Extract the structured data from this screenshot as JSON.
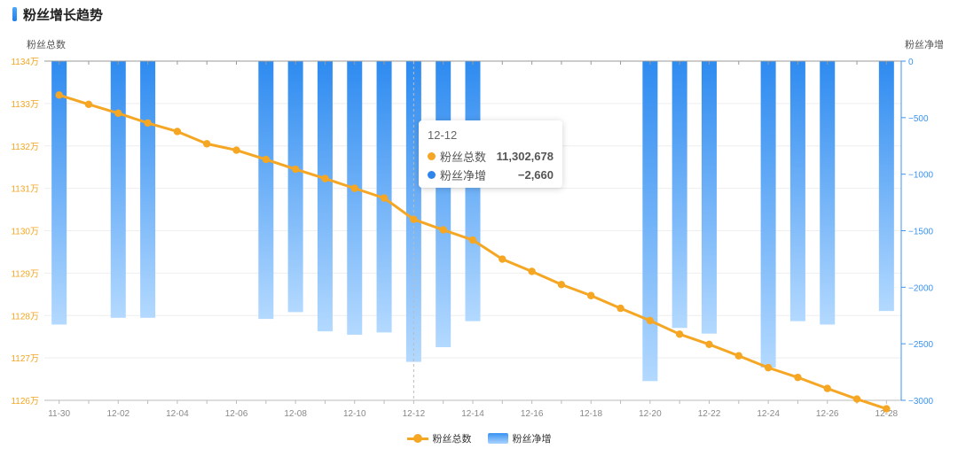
{
  "header": {
    "title": "粉丝增长趋势"
  },
  "chart_data": {
    "type": "bar+line",
    "categories": [
      "11-30",
      "12-01",
      "12-02",
      "12-03",
      "12-04",
      "12-05",
      "12-06",
      "12-07",
      "12-08",
      "12-09",
      "12-10",
      "12-11",
      "12-12",
      "12-13",
      "12-14",
      "12-15",
      "12-16",
      "12-17",
      "12-18",
      "12-19",
      "12-20",
      "12-21",
      "12-22",
      "12-23",
      "12-24",
      "12-25",
      "12-26",
      "12-27",
      "12-28"
    ],
    "x_tick_labels": [
      "11-30",
      "12-02",
      "12-04",
      "12-06",
      "12-08",
      "12-10",
      "12-12",
      "12-14",
      "12-16",
      "12-18",
      "12-20",
      "12-22",
      "12-24",
      "12-26",
      "12-28"
    ],
    "left_axis": {
      "name": "粉丝总数",
      "min": 1126,
      "max": 1134,
      "ticks": [
        "1126万",
        "1127万",
        "1128万",
        "1129万",
        "1130万",
        "1131万",
        "1132万",
        "1133万",
        "1134万"
      ],
      "color": "#f5a623"
    },
    "right_axis": {
      "name": "粉丝净增",
      "min": -3000,
      "max": 0,
      "ticks": [
        "0",
        "−500",
        "−1000",
        "−1500",
        "−2000",
        "−2500",
        "−3000"
      ],
      "color": "#3a93f2"
    },
    "series": [
      {
        "name": "粉丝总数",
        "type": "line",
        "axis": "left",
        "color": "#f5a623",
        "values": [
          11332000,
          11329800,
          11327700,
          11325400,
          11323400,
          11320500,
          11319000,
          11316800,
          11314500,
          11312300,
          11310000,
          11307700,
          11302678,
          11300200,
          11297800,
          11293300,
          11290400,
          11287300,
          11284700,
          11281700,
          11278800,
          11275600,
          11273200,
          11270500,
          11267700,
          11265400,
          11262800,
          11260300,
          11258000
        ]
      },
      {
        "name": "粉丝净增",
        "type": "bar",
        "axis": "right",
        "color": "#3a93f2",
        "values": [
          -2330,
          null,
          -2270,
          -2270,
          null,
          null,
          null,
          -2280,
          -2220,
          -2390,
          -2420,
          -2400,
          -2660,
          -2530,
          -2300,
          null,
          null,
          null,
          null,
          null,
          -2830,
          -2360,
          -2410,
          null,
          -2710,
          -2300,
          -2330,
          null,
          -2210
        ]
      }
    ],
    "tooltip": {
      "date": "12-12",
      "rows": [
        {
          "name": "粉丝总数",
          "value": "11,302,678",
          "color": "#f5a623"
        },
        {
          "name": "粉丝净增",
          "value": "−2,660",
          "color": "#2f86ea"
        }
      ]
    },
    "legend": [
      {
        "name": "粉丝总数",
        "kind": "line"
      },
      {
        "name": "粉丝净增",
        "kind": "bar"
      }
    ],
    "legend_position": "bottom-center",
    "grid": true
  }
}
